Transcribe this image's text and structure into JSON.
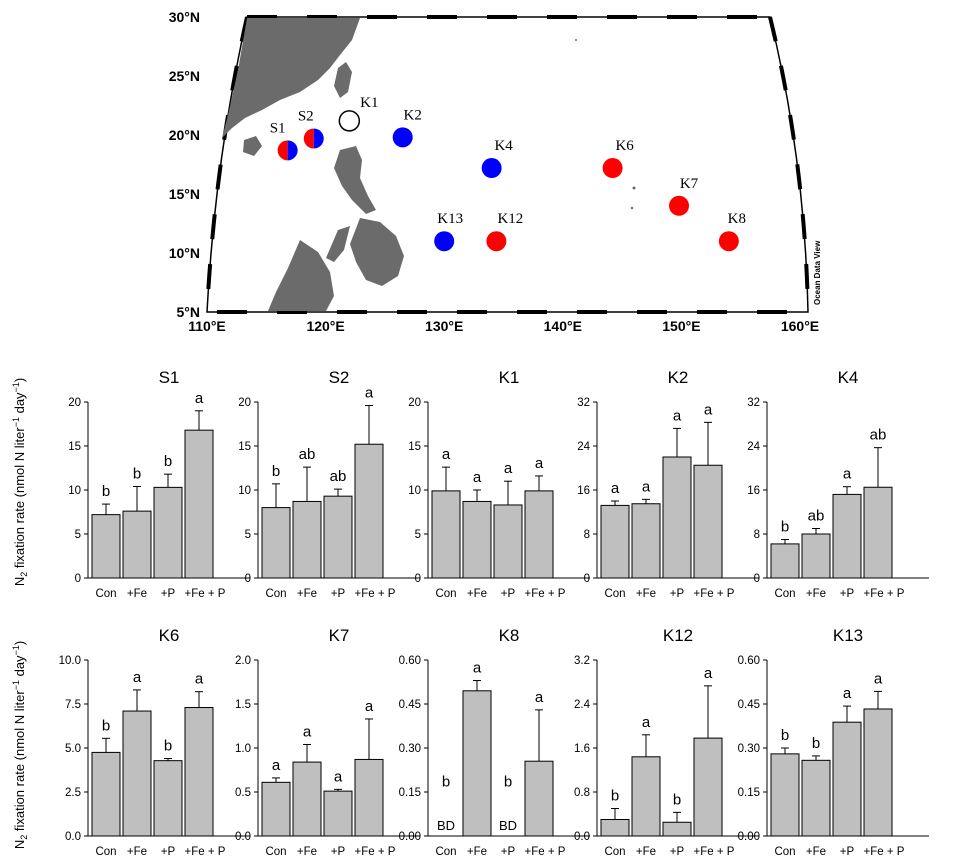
{
  "map": {
    "lat_labels": [
      "30°N",
      "25°N",
      "20°N",
      "15°N",
      "10°N",
      "5°N"
    ],
    "lon_labels": [
      "110°E",
      "120°E",
      "130°E",
      "140°E",
      "150°E",
      "160°E"
    ],
    "lat_values": [
      30,
      25,
      20,
      15,
      10,
      5
    ],
    "lon_values": [
      110,
      120,
      130,
      140,
      150,
      160
    ],
    "watermark": "Ocean Data View",
    "stations": [
      {
        "name": "S1",
        "lon": 116.8,
        "lat": 18.7,
        "fill": "split"
      },
      {
        "name": "S2",
        "lon": 119.0,
        "lat": 19.7,
        "fill": "split"
      },
      {
        "name": "K1",
        "lon": 122.0,
        "lat": 21.2,
        "fill": "white"
      },
      {
        "name": "K2",
        "lon": 126.5,
        "lat": 19.8,
        "fill": "blue"
      },
      {
        "name": "K4",
        "lon": 134.0,
        "lat": 17.2,
        "fill": "blue"
      },
      {
        "name": "K6",
        "lon": 144.2,
        "lat": 17.2,
        "fill": "red"
      },
      {
        "name": "K7",
        "lon": 149.8,
        "lat": 14.0,
        "fill": "red"
      },
      {
        "name": "K8",
        "lon": 154.0,
        "lat": 11.0,
        "fill": "red"
      },
      {
        "name": "K12",
        "lon": 134.4,
        "lat": 11.0,
        "fill": "red"
      },
      {
        "name": "K13",
        "lon": 130.0,
        "lat": 11.0,
        "fill": "blue"
      }
    ],
    "colors": {
      "red": "#ff0000",
      "blue": "#0000ff",
      "land": "#6b6b6b"
    }
  },
  "ylabel_row1": "N2 fixation rate (nmol N liter-1 day-1)",
  "ylabel_row2": "N2 fixation rate (nmol N liter-1 day-1)",
  "chart_data": [
    {
      "type": "bar",
      "title": "S1",
      "categories": [
        "Con",
        "+Fe",
        "+P",
        "+Fe + P"
      ],
      "values": [
        7.2,
        7.6,
        10.3,
        16.8
      ],
      "errors": [
        1.2,
        2.8,
        1.5,
        2.2
      ],
      "labels": [
        "b",
        "b",
        "b",
        "a"
      ],
      "ylim": [
        0,
        20
      ],
      "yticks": [
        "0",
        "5",
        "10",
        "15",
        "20"
      ]
    },
    {
      "type": "bar",
      "title": "S2",
      "categories": [
        "Con",
        "+Fe",
        "+P",
        "+Fe + P"
      ],
      "values": [
        8.0,
        8.7,
        9.3,
        15.2
      ],
      "errors": [
        2.7,
        3.9,
        0.8,
        4.4
      ],
      "labels": [
        "b",
        "ab",
        "ab",
        "a"
      ],
      "ylim": [
        0,
        20
      ],
      "yticks": [
        "0",
        "5",
        "10",
        "15",
        "20"
      ]
    },
    {
      "type": "bar",
      "title": "K1",
      "categories": [
        "Con",
        "+Fe",
        "+P",
        "+Fe + P"
      ],
      "values": [
        9.9,
        8.7,
        8.3,
        9.9
      ],
      "errors": [
        2.7,
        1.3,
        2.7,
        1.7
      ],
      "labels": [
        "a",
        "a",
        "a",
        "a"
      ],
      "ylim": [
        0,
        20
      ],
      "yticks": [
        "0",
        "5",
        "10",
        "15",
        "20"
      ]
    },
    {
      "type": "bar",
      "title": "K2",
      "categories": [
        "Con",
        "+Fe",
        "+P",
        "+Fe + P"
      ],
      "values": [
        13.2,
        13.5,
        22.0,
        20.5
      ],
      "errors": [
        0.8,
        0.8,
        5.2,
        7.8
      ],
      "labels": [
        "a",
        "a",
        "a",
        "a"
      ],
      "ylim": [
        0,
        32
      ],
      "yticks": [
        "0",
        "8",
        "16",
        "24",
        "32"
      ]
    },
    {
      "type": "bar",
      "title": "K4",
      "categories": [
        "Con",
        "+Fe",
        "+P",
        "+Fe + P"
      ],
      "values": [
        6.2,
        8.0,
        15.2,
        16.5
      ],
      "errors": [
        0.8,
        1.0,
        1.4,
        7.2
      ],
      "labels": [
        "b",
        "ab",
        "a",
        "ab"
      ],
      "ylim": [
        0,
        32
      ],
      "yticks": [
        "0",
        "8",
        "16",
        "24",
        "32"
      ]
    },
    {
      "type": "bar",
      "title": "K6",
      "categories": [
        "Con",
        "+Fe",
        "+P",
        "+Fe + P"
      ],
      "values": [
        4.75,
        7.1,
        4.28,
        7.3
      ],
      "errors": [
        0.8,
        1.2,
        0.12,
        0.9
      ],
      "labels": [
        "b",
        "a",
        "b",
        "a"
      ],
      "ylim": [
        0,
        10
      ],
      "yticks": [
        "0.0",
        "2.5",
        "5.0",
        "7.5",
        "10.0"
      ]
    },
    {
      "type": "bar",
      "title": "K7",
      "categories": [
        "Con",
        "+Fe",
        "+P",
        "+Fe + P"
      ],
      "values": [
        0.61,
        0.84,
        0.51,
        0.87
      ],
      "errors": [
        0.05,
        0.2,
        0.02,
        0.46
      ],
      "labels": [
        "a",
        "a",
        "a",
        "a"
      ],
      "ylim": [
        0,
        2
      ],
      "yticks": [
        "0.0",
        "0.5",
        "1.0",
        "1.5",
        "2.0"
      ]
    },
    {
      "type": "bar",
      "title": "K8",
      "categories": [
        "Con",
        "+Fe",
        "+P",
        "+Fe + P"
      ],
      "values": [
        0,
        0.495,
        0,
        0.255
      ],
      "errors": [
        0,
        0.035,
        0,
        0.175
      ],
      "labels": [
        "b",
        "a",
        "b",
        "a"
      ],
      "bd": [
        "BD",
        "",
        "BD",
        ""
      ],
      "ylim": [
        0,
        0.6
      ],
      "yticks": [
        "0.00",
        "0.15",
        "0.30",
        "0.45",
        "0.60"
      ]
    },
    {
      "type": "bar",
      "title": "K12",
      "categories": [
        "Con",
        "+Fe",
        "+P",
        "+Fe + P"
      ],
      "values": [
        0.3,
        1.44,
        0.25,
        1.78
      ],
      "errors": [
        0.2,
        0.4,
        0.18,
        0.95
      ],
      "labels": [
        "b",
        "a",
        "b",
        "a"
      ],
      "ylim": [
        0,
        3.2
      ],
      "yticks": [
        "0.0",
        "0.8",
        "1.6",
        "2.4",
        "3.2"
      ]
    },
    {
      "type": "bar",
      "title": "K13",
      "categories": [
        "Con",
        "+Fe",
        "+P",
        "+Fe + P"
      ],
      "values": [
        0.28,
        0.258,
        0.388,
        0.433
      ],
      "errors": [
        0.02,
        0.015,
        0.055,
        0.06
      ],
      "labels": [
        "b",
        "b",
        "a",
        "a"
      ],
      "ylim": [
        0,
        0.6
      ],
      "yticks": [
        "0.00",
        "0.15",
        "0.30",
        "0.45",
        "0.60"
      ]
    }
  ]
}
